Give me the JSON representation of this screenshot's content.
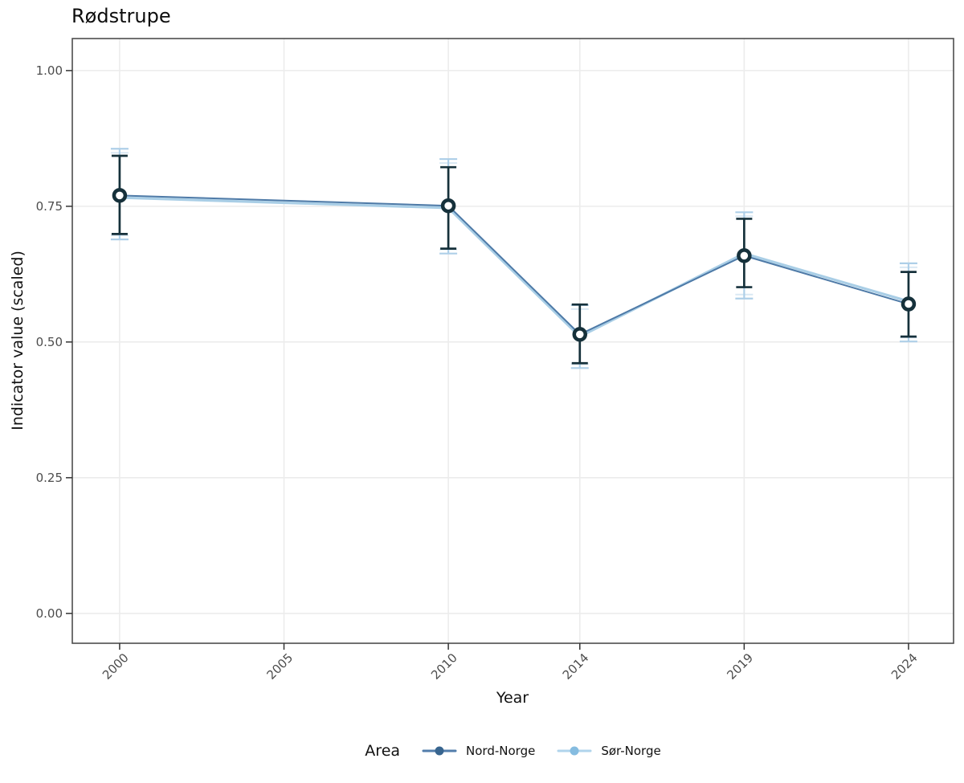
{
  "chart_data": {
    "type": "line",
    "title": "Rødstrupe",
    "xlabel": "Year",
    "ylabel": "Indicator value (scaled)",
    "legend_title": "Area",
    "legend_position": "bottom",
    "grid": "major-only",
    "x": [
      2000,
      2010,
      2014,
      2019,
      2024
    ],
    "x_ticks": [
      2000,
      2005,
      2010,
      2014,
      2019,
      2024
    ],
    "y_ticks": [
      1.0,
      0.75,
      0.5,
      0.25,
      0.0
    ],
    "y_tick_labels": [
      "1.00",
      "0.75",
      "0.50",
      "0.25",
      "0.00"
    ],
    "xlim": [
      1998.56,
      2025.37
    ],
    "ylim": [
      -0.055,
      1.059
    ],
    "series": [
      {
        "name": "Nord-Norge",
        "line_color": "#4e7aa7",
        "errorbar_color": "#16313b",
        "marker_fill": "#ffffff",
        "marker_outline": "#16313b",
        "legend_line_color": "#527dab",
        "legend_dot_color": "#38658f",
        "values": [
          0.77,
          0.751,
          0.514,
          0.659,
          0.57
        ],
        "lower": [
          0.699,
          0.672,
          0.461,
          0.601,
          0.51
        ],
        "upper": [
          0.843,
          0.822,
          0.569,
          0.727,
          0.629
        ]
      },
      {
        "name": "Sør-Norge",
        "line_color": "#a9cee6",
        "errorbar_color": "#aecfe8",
        "legend_line_color": "#b0d4ec",
        "legend_dot_color": "#85bce0",
        "values": [
          0.766,
          0.747,
          0.51,
          0.663,
          0.575
        ],
        "lower": [
          0.689,
          0.663,
          0.452,
          0.58,
          0.501
        ],
        "upper": [
          0.856,
          0.837,
          0.568,
          0.739,
          0.645
        ]
      }
    ],
    "style_colors": {
      "panel_border": "#4d4d4d",
      "gridline": "#ececec",
      "tick_mark": "#333333",
      "tick_label": "#4d4d4d",
      "text": "#111111",
      "background": "#ffffff"
    }
  }
}
